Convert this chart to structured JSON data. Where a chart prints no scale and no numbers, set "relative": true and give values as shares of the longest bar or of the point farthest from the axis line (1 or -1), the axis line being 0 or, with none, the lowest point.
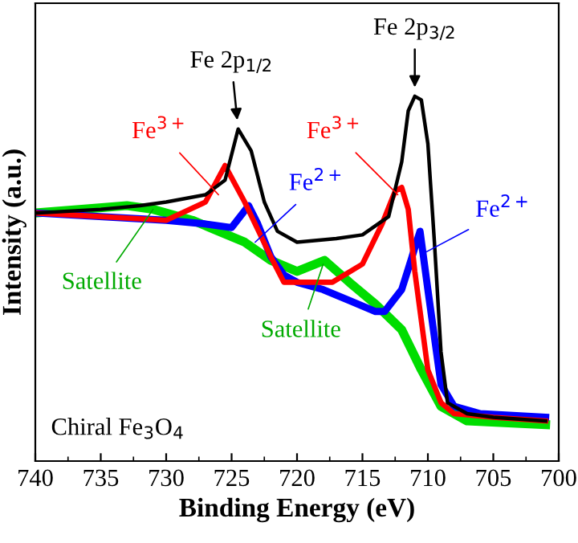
{
  "chart_data": {
    "type": "line",
    "xlabel": "Binding Energy (eV)",
    "ylabel": "Intensity (a.u.)",
    "relative": true,
    "xlim": [
      740,
      700
    ],
    "xticks": [
      740,
      735,
      730,
      725,
      720,
      715,
      710,
      705,
      700
    ],
    "grid": false,
    "legend": false,
    "marker": "none",
    "line_style": "solid",
    "series": [
      {
        "color": "#00dd00",
        "x": [
          740,
          733,
          731,
          728,
          726,
          724,
          722,
          720,
          717.9,
          716,
          714,
          712,
          710.5,
          709,
          707,
          701
        ],
        "values": [
          0.68,
          0.7,
          0.69,
          0.66,
          0.63,
          0.6,
          0.55,
          0.52,
          0.55,
          0.49,
          0.43,
          0.36,
          0.25,
          0.15,
          0.11,
          0.1
        ]
      },
      {
        "color": "#0000ff",
        "x": [
          740,
          730,
          727,
          725,
          723.7,
          723,
          722,
          721,
          720,
          718,
          716,
          714,
          713.3,
          712,
          710.6,
          710,
          709,
          708,
          706,
          701
        ],
        "values": [
          0.68,
          0.66,
          0.65,
          0.64,
          0.7,
          0.65,
          0.56,
          0.51,
          0.49,
          0.47,
          0.44,
          0.41,
          0.41,
          0.47,
          0.63,
          0.47,
          0.21,
          0.15,
          0.13,
          0.12
        ]
      },
      {
        "color": "#ff0000",
        "x": [
          740,
          730,
          727,
          725.5,
          724,
          722,
          721,
          719,
          717.3,
          715,
          713.5,
          712.5,
          712,
          711.5,
          711,
          710,
          709,
          708,
          705,
          701
        ],
        "values": [
          0.68,
          0.66,
          0.71,
          0.81,
          0.71,
          0.56,
          0.49,
          0.49,
          0.49,
          0.54,
          0.65,
          0.74,
          0.75,
          0.69,
          0.52,
          0.25,
          0.16,
          0.13,
          0.12,
          0.11
        ]
      },
      {
        "color": "#000000",
        "x": [
          740,
          735,
          732,
          730,
          727,
          725.5,
          724.5,
          723.5,
          722.5,
          721.5,
          720,
          717,
          715,
          713,
          712,
          711.5,
          711,
          710.5,
          710,
          709.5,
          709,
          708.5,
          707,
          705,
          701
        ],
        "values": [
          0.68,
          0.69,
          0.7,
          0.71,
          0.73,
          0.77,
          0.91,
          0.85,
          0.71,
          0.63,
          0.6,
          0.61,
          0.62,
          0.67,
          0.82,
          0.96,
          1,
          0.99,
          0.87,
          0.6,
          0.3,
          0.16,
          0.13,
          0.12,
          0.11
        ]
      }
    ],
    "annotations": [
      {
        "text": "Fe 2p$_{1/2}$",
        "x": 724.5,
        "y": 0.91
      },
      {
        "text": "Fe 2p$_{3/2}$",
        "x": 711,
        "y": 1
      },
      {
        "text": "Fe$^{3+}$",
        "x": 726,
        "y": 0.73
      },
      {
        "text": "Fe$^{2+}$",
        "x": 723.2,
        "y": 0.6
      },
      {
        "text": "Satellite",
        "x": 731,
        "y": 0.69
      },
      {
        "text": "Fe$^{3+}$",
        "x": 712.3,
        "y": 0.73
      },
      {
        "text": "Fe$^{2+}$",
        "x": 710.3,
        "y": 0.57
      },
      {
        "text": "Satellite",
        "x": 718,
        "y": 0.54
      },
      "Chiral Fe$_{3}$O$_{4}$"
    ]
  }
}
